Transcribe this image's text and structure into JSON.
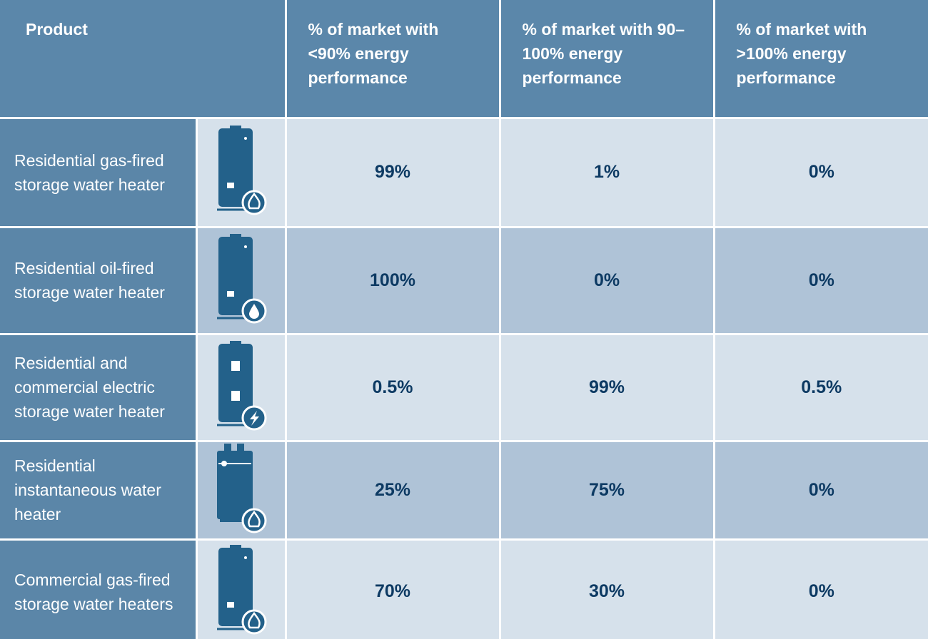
{
  "table": {
    "header": [
      "Product",
      "% of market with <90% energy performance",
      "% of market with 90–100% energy performance",
      "% of market with >100% energy performance"
    ],
    "rows": [
      [
        "Residential gas-fired storage water heater",
        "99%",
        "1%",
        "0%"
      ],
      [
        "Residential oil-fired storage water heater",
        "100%",
        "0%",
        "0%"
      ],
      [
        "Residential and commercial electric storage water heater",
        "0.5%",
        "99%",
        "0.5%"
      ],
      [
        "Residential instantaneous water heater",
        "25%",
        "75%",
        "0%"
      ],
      [
        "Commercial gas-fired storage water heaters",
        "70%",
        "30%",
        "0%"
      ]
    ]
  }
}
